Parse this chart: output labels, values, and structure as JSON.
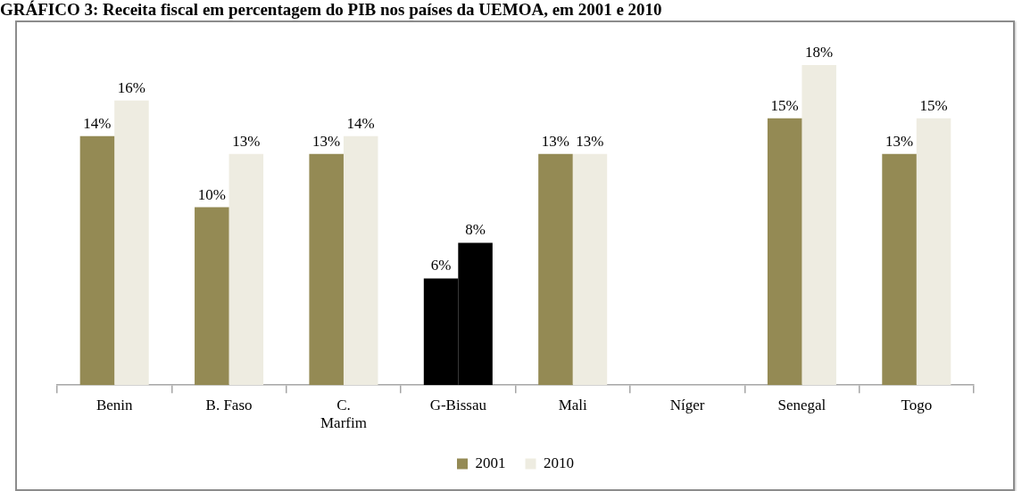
{
  "chart_data": {
    "type": "bar",
    "title": "GRÁFICO 3: Receita fiscal em percentagem do PIB nos países da UEMOA, em 2001 e 2010",
    "categories": [
      "Benin",
      "B. Faso",
      "C. Marfim",
      "G-Bissau",
      "Mali",
      "Níger",
      "Senegal",
      "Togo"
    ],
    "series": [
      {
        "name": "2001",
        "color": "#948a54",
        "colors": [
          "#948a54",
          "#948a54",
          "#948a54",
          "#000000",
          "#948a54",
          "#948a54",
          "#948a54",
          "#948a54"
        ],
        "values": [
          14,
          10,
          13,
          6,
          13,
          null,
          15,
          13
        ],
        "value_labels": [
          "14%",
          "10%",
          "13%",
          "6%",
          "13%",
          null,
          "15%",
          "13%"
        ]
      },
      {
        "name": "2010",
        "color": "#eeece1",
        "colors": [
          "#eeece1",
          "#eeece1",
          "#eeece1",
          "#000000",
          "#eeece1",
          "#eeece1",
          "#eeece1",
          "#eeece1"
        ],
        "values": [
          16,
          13,
          14,
          8,
          13,
          null,
          18,
          15
        ],
        "value_labels": [
          "16%",
          "13%",
          "14%",
          "8%",
          "13%",
          null,
          "18%",
          "15%"
        ]
      }
    ],
    "legend": "bottom",
    "tick_labels": "x"
  }
}
